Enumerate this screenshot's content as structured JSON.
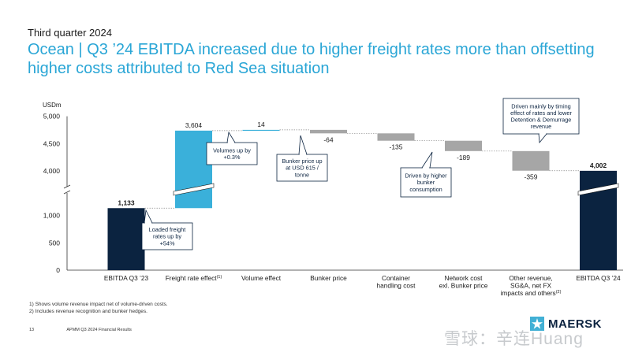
{
  "header": {
    "supertitle": "Third quarter 2024",
    "title": "Ocean | Q3 ’24 EBITDA increased due to higher freight rates more than offsetting higher costs attributed to Red Sea situation"
  },
  "chart_data": {
    "type": "bar",
    "subtype": "waterfall",
    "ylabel": "USDm",
    "ylim": [
      0,
      5000
    ],
    "axis_break": true,
    "yticks": [
      {
        "value": 0,
        "label": "0"
      },
      {
        "value": 500,
        "label": "500"
      },
      {
        "value": 1000,
        "label": "1,000"
      },
      {
        "value": 4000,
        "label": "4,000"
      },
      {
        "value": 4500,
        "label": "4,500"
      },
      {
        "value": 5000,
        "label": "5,000"
      }
    ],
    "categories": [
      "EBITDA Q3 ’23",
      "Freight rate effect",
      "Volume effect",
      "Bunker price",
      "Container handling cost",
      "Network cost excl. Bunker price",
      "Other revenue, SG&A, net FX impacts and others",
      "EBITDA Q3 ’24"
    ],
    "category_lines": [
      [
        "EBITDA Q3 ’23"
      ],
      [
        "Freight rate effect"
      ],
      [
        "Volume effect"
      ],
      [
        "Bunker price"
      ],
      [
        "Container",
        "handling cost"
      ],
      [
        "Network cost",
        "exl. Bunker price"
      ],
      [
        "Other revenue,",
        "SG&A, net FX",
        "impacts and others"
      ],
      [
        "EBITDA Q3 ’24"
      ]
    ],
    "category_sup": [
      "",
      "(1)",
      "",
      "",
      "",
      "",
      "(2)",
      ""
    ],
    "values": [
      1133,
      3604,
      14,
      -64,
      -135,
      -189,
      -359,
      4002
    ],
    "kinds": [
      "total",
      "delta",
      "delta",
      "delta",
      "delta",
      "delta",
      "delta",
      "total"
    ],
    "value_labels": [
      "1,133",
      "3,604",
      "14",
      "-64",
      "-135",
      "-189",
      "-359",
      "4,002"
    ],
    "annotations": [
      {
        "category": 1,
        "text": [
          "Loaded freight",
          "rates up by",
          "+54%"
        ]
      },
      {
        "category": 2,
        "text": [
          "Volumes up by",
          "+0.3%"
        ]
      },
      {
        "category": 3,
        "text": [
          "Bunker price up",
          "at USD 615 /",
          "tonne"
        ]
      },
      {
        "category": 5,
        "text": [
          "Driven by higher",
          "bunker",
          "consumption"
        ]
      },
      {
        "category": 6,
        "text": [
          "Driven mainly by timing",
          "effect of rates and lower",
          "Detention & Demurrage",
          "revenue"
        ]
      }
    ],
    "colors": {
      "total": "#0b2340",
      "increase": "#3ab0da",
      "decrease": "#a6a6a6"
    }
  },
  "footnotes": [
    "1)    Shows volume revenue impact net of volume-driven costs.",
    "2)    Includes revenue recognition and bunker hedges."
  ],
  "footer": {
    "page_number": "13",
    "doc_title": "APMM Q3 2024 Financial Results",
    "logo_text": "MAERSK",
    "logo_icon": "maersk-star-icon",
    "watermark": "雪球：辛连Huang"
  }
}
